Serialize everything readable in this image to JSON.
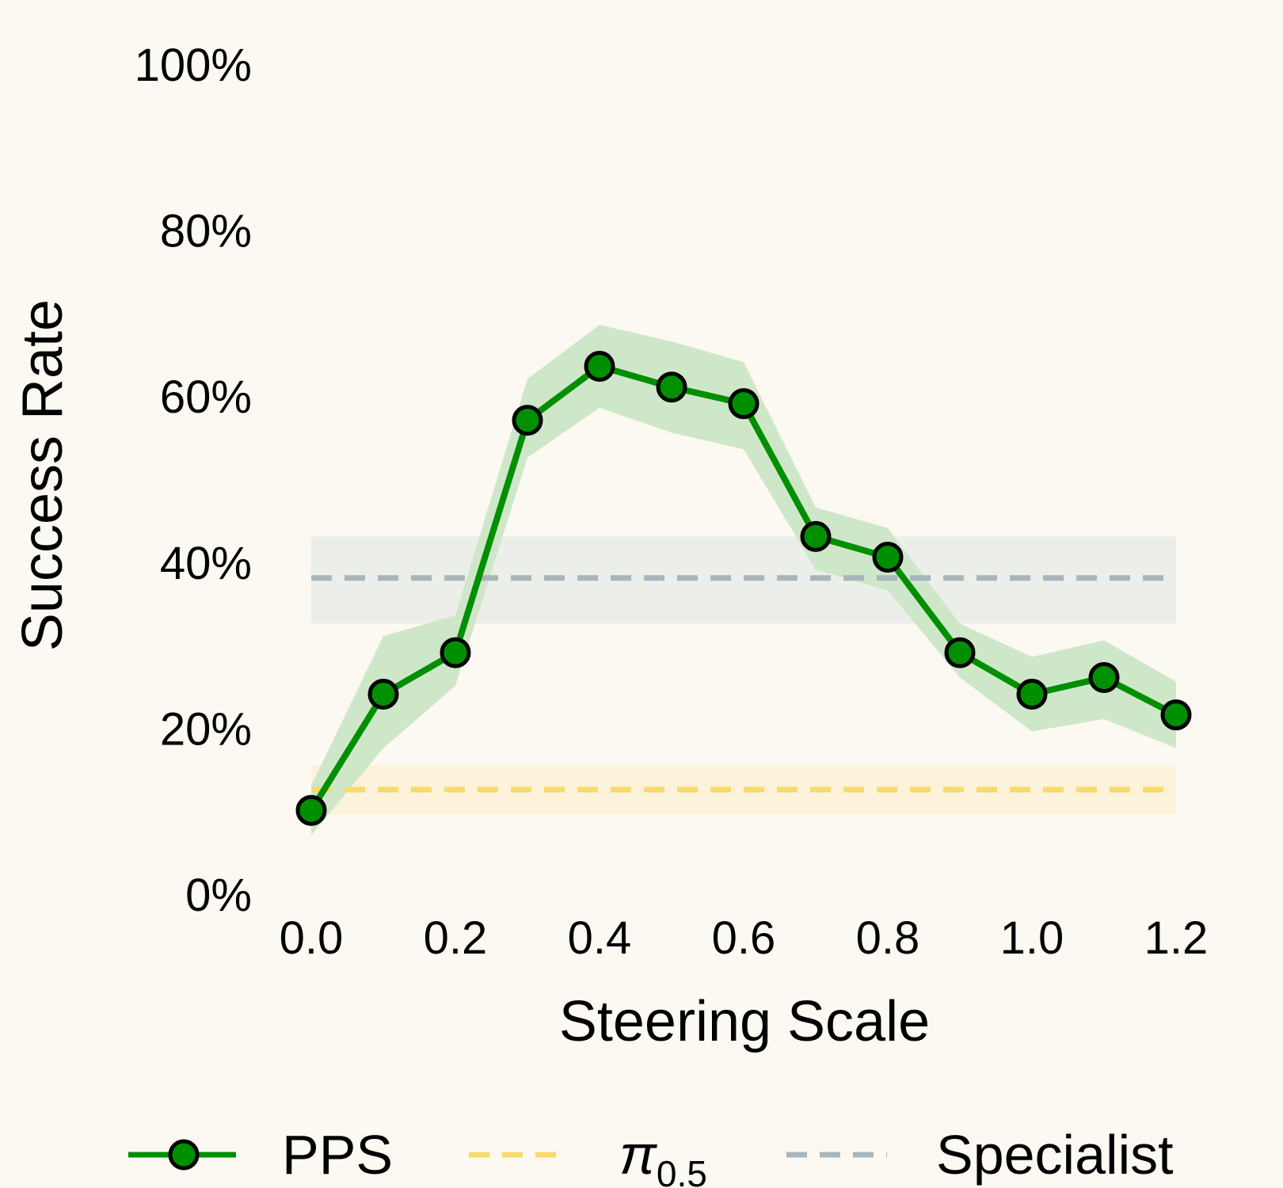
{
  "chart_data": {
    "type": "line",
    "xlabel": "Steering Scale",
    "ylabel": "Success Rate",
    "xlim": [
      0.0,
      1.2
    ],
    "ylim": [
      0,
      100
    ],
    "x_ticks": [
      "0.0",
      "0.2",
      "0.4",
      "0.6",
      "0.8",
      "1.0",
      "1.2"
    ],
    "y_ticks": [
      "0%",
      "20%",
      "40%",
      "60%",
      "80%",
      "100%"
    ],
    "grid": false,
    "legend_position": "bottom",
    "series": [
      {
        "name": "PPS",
        "color": "#008f00",
        "fill_color": "#cfe7c9",
        "x": [
          0.0,
          0.1,
          0.2,
          0.3,
          0.4,
          0.5,
          0.6,
          0.7,
          0.8,
          0.9,
          1.0,
          1.1,
          1.2
        ],
        "y": [
          10,
          24,
          29,
          57,
          63.5,
          61,
          59,
          43,
          40.5,
          29,
          24,
          26,
          21.5
        ],
        "lower": [
          7,
          17.5,
          25,
          52.5,
          58.5,
          55.5,
          53.5,
          39,
          36.5,
          26,
          19.5,
          21,
          17.5
        ],
        "upper": [
          13,
          31,
          33.5,
          62,
          68.5,
          66.5,
          64,
          46.5,
          44,
          32.5,
          28.5,
          30.5,
          25.5
        ]
      },
      {
        "name": "π",
        "name_subscript": "0.5",
        "color": "#f7da6a",
        "fill_color": "#fcf3da",
        "y": 12.5,
        "lower": 9.5,
        "upper": 15.5
      },
      {
        "name": "Specialist",
        "color": "#a7b5bd",
        "fill_color": "#eceeea",
        "y": 38,
        "lower": 32.5,
        "upper": 43
      }
    ]
  }
}
